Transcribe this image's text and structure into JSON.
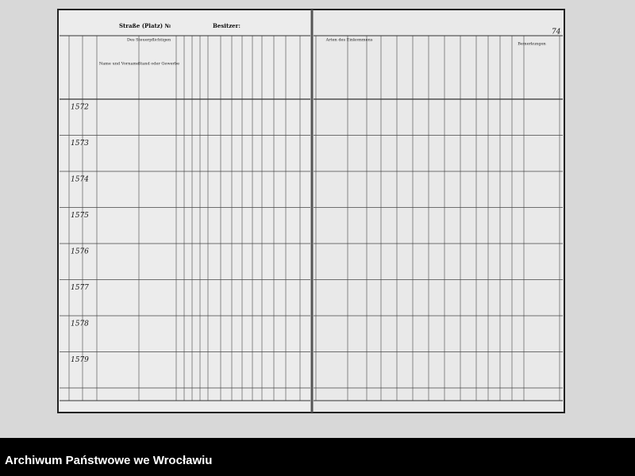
{
  "header": {
    "street_label": "Straße (Platz) №",
    "owner_label": "Besitzer:",
    "page_number": "74"
  },
  "left_columns": [
    "Des Steuerpflichtigen",
    "Name und Vorname",
    "Stand oder Gewerbe"
  ],
  "right_columns": [
    "Arten des Einkommens",
    "Bemerkungen"
  ],
  "rows": [
    "1572",
    "1573",
    "1574",
    "1575",
    "1576",
    "1577",
    "1578",
    "1579"
  ],
  "footer": {
    "archive": "Archiwum Państwowe we Wrocławiu"
  }
}
